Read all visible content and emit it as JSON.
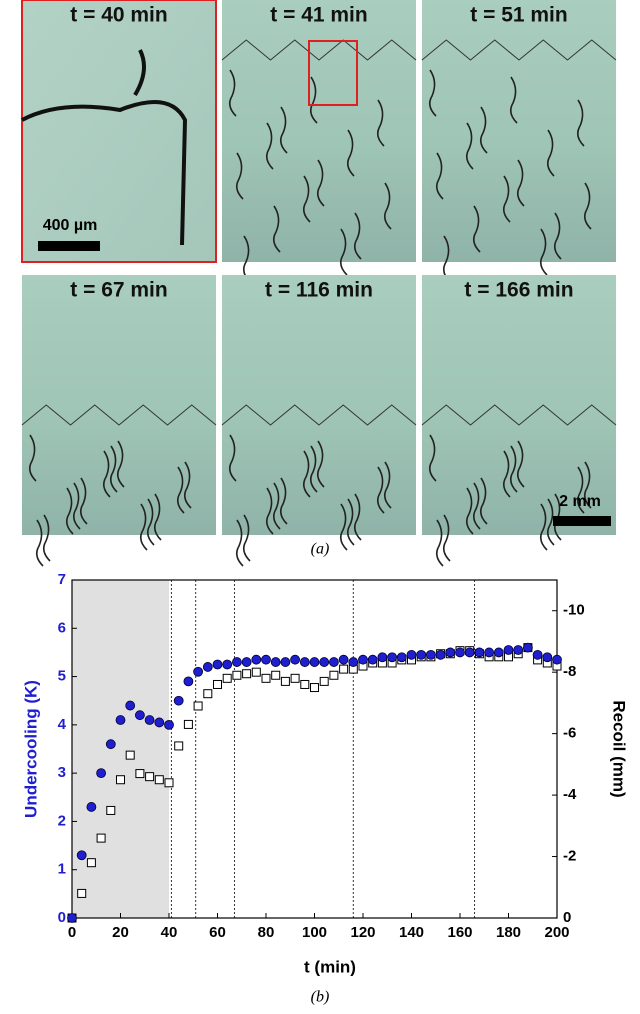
{
  "panels": [
    {
      "label": "t = 40 min",
      "scale_bar": "400 µm"
    },
    {
      "label": "t = 41 min"
    },
    {
      "label": "t = 51 min"
    },
    {
      "label": "t = 67 min"
    },
    {
      "label": "t = 116 min"
    },
    {
      "label": "t = 166 min",
      "scale_bar": "2 mm"
    }
  ],
  "caption_a": "(a)",
  "caption_b": "(b)",
  "chart_data": {
    "type": "scatter",
    "x_label": "t (min)",
    "y_label": "Undercooling (K)",
    "y2_label": "Recoil (mm)",
    "x": [
      0,
      4,
      8,
      12,
      16,
      20,
      24,
      28,
      32,
      36,
      40,
      44,
      48,
      52,
      56,
      60,
      64,
      68,
      72,
      76,
      80,
      84,
      88,
      92,
      96,
      100,
      104,
      108,
      112,
      116,
      120,
      124,
      128,
      132,
      136,
      140,
      144,
      148,
      152,
      156,
      160,
      164,
      168,
      172,
      176,
      180,
      184,
      188,
      192,
      196,
      200
    ],
    "series": [
      {
        "name": "Undercooling",
        "color": "#1f1fd0",
        "marker": "circle",
        "values": [
          0,
          1.3,
          2.3,
          3.0,
          3.6,
          4.1,
          4.4,
          4.2,
          4.1,
          4.05,
          4.0,
          4.5,
          4.9,
          5.1,
          5.2,
          5.25,
          5.25,
          5.3,
          5.3,
          5.35,
          5.35,
          5.3,
          5.3,
          5.35,
          5.3,
          5.3,
          5.3,
          5.3,
          5.35,
          5.3,
          5.35,
          5.35,
          5.4,
          5.4,
          5.4,
          5.45,
          5.45,
          5.45,
          5.45,
          5.5,
          5.5,
          5.5,
          5.5,
          5.5,
          5.5,
          5.55,
          5.55,
          5.6,
          5.45,
          5.4,
          5.35
        ]
      },
      {
        "name": "Recoil",
        "color": "#000000",
        "marker": "square",
        "axis": "y2",
        "values": [
          0,
          -0.8,
          -1.8,
          -2.6,
          -3.5,
          -4.5,
          -5.3,
          -4.7,
          -4.6,
          -4.5,
          -4.4,
          -5.6,
          -6.3,
          -6.9,
          -7.3,
          -7.6,
          -7.8,
          -7.9,
          -7.95,
          -8.0,
          -7.8,
          -7.9,
          -7.7,
          -7.8,
          -7.6,
          -7.5,
          -7.7,
          -7.9,
          -8.1,
          -8.1,
          -8.2,
          -8.3,
          -8.3,
          -8.3,
          -8.4,
          -8.4,
          -8.5,
          -8.5,
          -8.6,
          -8.6,
          -8.7,
          -8.7,
          -8.6,
          -8.5,
          -8.5,
          -8.5,
          -8.6,
          -8.8,
          -8.4,
          -8.3,
          -8.2
        ]
      }
    ],
    "xlim": [
      0,
      200
    ],
    "xticks": [
      0,
      20,
      40,
      60,
      80,
      100,
      120,
      140,
      160,
      180,
      200
    ],
    "ylim": [
      0,
      7
    ],
    "yticks": [
      0,
      1,
      2,
      3,
      4,
      5,
      6,
      7
    ],
    "y2lim": [
      0,
      -11
    ],
    "y2ticks": [
      0,
      -2,
      -4,
      -6,
      -8,
      -10
    ],
    "shade_x": [
      0,
      40
    ],
    "vlines": [
      41,
      51,
      67,
      116,
      166
    ]
  }
}
